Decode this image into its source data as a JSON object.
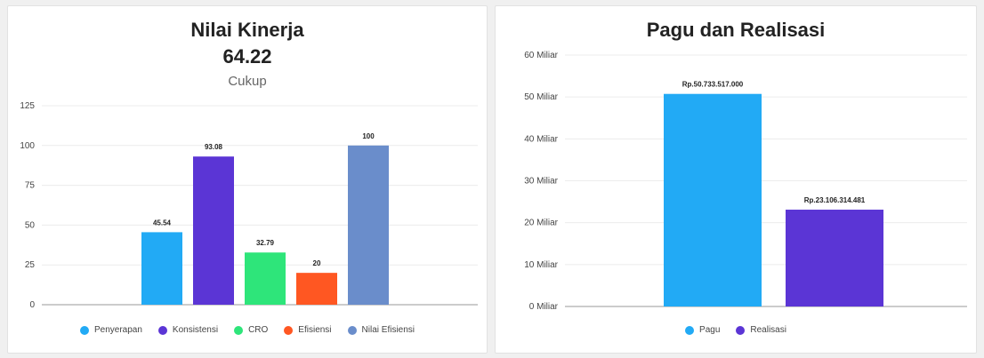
{
  "chart_data": [
    {
      "type": "bar",
      "title": "Nilai Kinerja",
      "score": "64.22",
      "grade": "Cukup",
      "categories": [
        "Penyerapan",
        "Konsistensi",
        "CRO",
        "Efisiensi",
        "Nilai Efisiensi"
      ],
      "values": [
        45.54,
        93.08,
        32.79,
        20,
        100
      ],
      "value_labels": [
        "45.54",
        "93.08",
        "32.79",
        "20",
        "100"
      ],
      "colors": [
        "#22aaf5",
        "#5b35d5",
        "#2ee57a",
        "#ff5722",
        "#6a8dcb"
      ],
      "yticks": [
        0,
        25,
        50,
        75,
        100,
        125
      ],
      "ylim": [
        0,
        125
      ],
      "grid": true,
      "legend_position": "bottom"
    },
    {
      "type": "bar",
      "title": "Pagu dan Realisasi",
      "categories": [
        "Pagu",
        "Realisasi"
      ],
      "values": [
        50.733517,
        23.106314481
      ],
      "value_labels": [
        "Rp.50.733.517.000",
        "Rp.23.106.314.481"
      ],
      "colors": [
        "#22aaf5",
        "#5b35d5"
      ],
      "yticks": [
        0,
        10,
        20,
        30,
        40,
        50,
        60
      ],
      "ytick_labels": [
        "0 Miliar",
        "10 Miliar",
        "20 Miliar",
        "30 Miliar",
        "40 Miliar",
        "50 Miliar",
        "60 Miliar"
      ],
      "ylim": [
        0,
        60
      ],
      "grid": true,
      "legend_position": "bottom"
    }
  ]
}
